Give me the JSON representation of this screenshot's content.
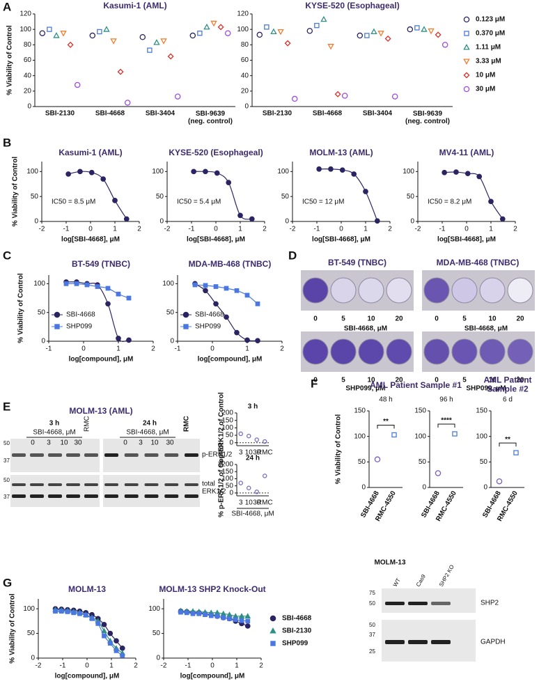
{
  "panel_labels": [
    "A",
    "B",
    "C",
    "D",
    "E",
    "F",
    "G"
  ],
  "panel_d": {
    "titles": [
      "BT-549 (TNBC)",
      "MDA-MB-468 (TNBC)"
    ],
    "doses": [
      "0",
      "5",
      "10",
      "20"
    ],
    "rows": [
      "SBI-4668, μM",
      "SHP099, μM"
    ]
  },
  "panel_e": {
    "title": "MOLM-13 (AML)",
    "times": [
      "3 h",
      "24 h"
    ],
    "treatment": "SBI-4668, μM",
    "doses": [
      "0",
      "3",
      "10",
      "30"
    ],
    "rmc": "RMC",
    "markers": [
      "50",
      "37"
    ],
    "bands": [
      "p-ERK1/2",
      "total\nERK1/2"
    ]
  },
  "panel_g": {
    "title": "MOLM-13",
    "lanes": [
      "WT",
      "Cas9",
      "SHP2 KO"
    ],
    "markers_top": [
      "75",
      "50"
    ],
    "markers_bottom": [
      "50",
      "37",
      "25"
    ],
    "bands": [
      "SHP2",
      "GAPDH"
    ]
  },
  "chart_data": [
    {
      "type": "dotplot",
      "title": "Kasumi-1 (AML)",
      "ylabel": "% Viability of Control",
      "categories": [
        "SBI-2130",
        "SBI-4668",
        "SBI-3404",
        "SBI-9639\n(neg. control)"
      ],
      "ylim": [
        0,
        120
      ],
      "yticks": [
        0,
        20,
        40,
        60,
        80,
        100,
        120
      ],
      "filled": false,
      "series": [
        {
          "color": "#2b2463",
          "marker": "circle",
          "values": [
            95,
            92,
            90,
            92
          ]
        },
        {
          "color": "#4a78e0",
          "marker": "square",
          "values": [
            100,
            97,
            73,
            95
          ]
        },
        {
          "color": "#2f8f84",
          "marker": "triangle",
          "values": [
            92,
            100,
            83,
            103
          ]
        },
        {
          "color": "#ee7d2f",
          "marker": "down",
          "values": [
            95,
            85,
            85,
            108
          ]
        },
        {
          "color": "#d9302a",
          "marker": "diamond",
          "values": [
            80,
            45,
            65,
            103
          ]
        },
        {
          "color": "#a04be0",
          "marker": "circle",
          "values": [
            28,
            5,
            13,
            95
          ]
        }
      ]
    },
    {
      "type": "dotplot",
      "title": "KYSE-520 (Esophageal)",
      "categories": [
        "SBI-2130",
        "SBI-4668",
        "SBI-3404",
        "SBI-9639\n(neg. control)"
      ],
      "ylim": [
        0,
        120
      ],
      "yticks": [
        0,
        20,
        40,
        60,
        80,
        100,
        120
      ],
      "filled": false,
      "legend": "right",
      "series": [
        {
          "name": "0.123 μM",
          "color": "#2b2463",
          "marker": "circle",
          "values": [
            93,
            98,
            92,
            100
          ]
        },
        {
          "name": "0.370 μM",
          "color": "#4a78e0",
          "marker": "square",
          "values": [
            103,
            105,
            92,
            102
          ]
        },
        {
          "name": "1.11 μM",
          "color": "#2f8f84",
          "marker": "triangle",
          "values": [
            97,
            113,
            97,
            100
          ]
        },
        {
          "name": "3.33 μM",
          "color": "#ee7d2f",
          "marker": "down",
          "values": [
            97,
            78,
            95,
            98
          ]
        },
        {
          "name": "10 μM",
          "color": "#d9302a",
          "marker": "diamond",
          "values": [
            82,
            16,
            88,
            93
          ]
        },
        {
          "name": "30 μM",
          "color": "#a04be0",
          "marker": "circle",
          "values": [
            10,
            14,
            13,
            80
          ]
        }
      ]
    },
    {
      "type": "line",
      "title": "Kasumi-1 (AML)",
      "ylabel": "% Viability of Control",
      "xlabel": "log[SBI-4668], μM",
      "annotation": "IC50 = 8.5 μM",
      "x": [
        -0.91,
        -0.43,
        0.05,
        0.52,
        1.0,
        1.48
      ],
      "values": [
        95,
        100,
        98,
        85,
        42,
        5
      ],
      "color": "#2b2463",
      "marker": "circle",
      "filled": true,
      "xlim": [
        -2,
        2
      ],
      "xticks": [
        -2,
        -1,
        0,
        1,
        2
      ],
      "ylim": [
        0,
        120
      ],
      "yticks": [
        0,
        50,
        100
      ]
    },
    {
      "type": "line",
      "title": "KYSE-520 (Esophageal)",
      "xlabel": "log[SBI-4668], μM",
      "annotation": "IC50 = 5.4 μM",
      "x": [
        -0.91,
        -0.43,
        0.05,
        0.52,
        1.0,
        1.48
      ],
      "values": [
        100,
        100,
        97,
        78,
        12,
        5
      ],
      "color": "#2b2463",
      "marker": "circle",
      "filled": true,
      "xlim": [
        -2,
        2
      ],
      "xticks": [
        -2,
        -1,
        0,
        1,
        2
      ],
      "ylim": [
        0,
        120
      ],
      "yticks": [
        0,
        50,
        100
      ]
    },
    {
      "type": "line",
      "title": "MOLM-13 (AML)",
      "xlabel": "log[SBI-4668], μM",
      "annotation": "IC50 = 12 μM",
      "x": [
        -0.91,
        -0.43,
        0.05,
        0.52,
        1.0,
        1.48
      ],
      "values": [
        105,
        105,
        103,
        95,
        60,
        1
      ],
      "color": "#2b2463",
      "marker": "circle",
      "filled": true,
      "xlim": [
        -2,
        2
      ],
      "xticks": [
        -2,
        -1,
        0,
        1,
        2
      ],
      "ylim": [
        0,
        120
      ],
      "yticks": [
        0,
        50,
        100
      ]
    },
    {
      "type": "line",
      "title": "MV4-11 (AML)",
      "xlabel": "log[SBI-4668], μM",
      "annotation": "IC50 = 8.2 μM",
      "x": [
        -0.91,
        -0.43,
        0.05,
        0.52,
        1.0,
        1.48
      ],
      "values": [
        98,
        99,
        96,
        90,
        40,
        5
      ],
      "color": "#2b2463",
      "marker": "circle",
      "filled": true,
      "xlim": [
        -2,
        2
      ],
      "xticks": [
        -2,
        -1,
        0,
        1,
        2
      ],
      "ylim": [
        0,
        120
      ],
      "yticks": [
        0,
        50,
        100
      ]
    },
    {
      "type": "line",
      "title": "BT-549 (TNBC)",
      "ylabel": "% Viability of Control",
      "xlabel": "log[compound], μM",
      "x": [
        -0.5,
        -0.2,
        0.1,
        0.4,
        0.7,
        1.0,
        1.3
      ],
      "xlim": [
        -1,
        2
      ],
      "xticks": [
        -1,
        0,
        1,
        2
      ],
      "ylim": [
        0,
        115
      ],
      "yticks": [
        0,
        50,
        100
      ],
      "filled": true,
      "legend": "lower left",
      "series": [
        {
          "name": "SBI-4668",
          "color": "#2b2463",
          "marker": "circle",
          "values": [
            103,
            103,
            100,
            98,
            65,
            5,
            2
          ]
        },
        {
          "name": "SHP099",
          "color": "#4a78e0",
          "marker": "square",
          "values": [
            100,
            100,
            98,
            95,
            92,
            82,
            75
          ]
        }
      ]
    },
    {
      "type": "line",
      "title": "MDA-MB-468 (TNBC)",
      "xlabel": "log[compound], μM",
      "x": [
        -0.5,
        -0.2,
        0.1,
        0.4,
        0.7,
        1.0,
        1.3
      ],
      "xlim": [
        -1,
        2
      ],
      "xticks": [
        -1,
        0,
        1,
        2
      ],
      "ylim": [
        0,
        115
      ],
      "yticks": [
        0,
        50,
        100
      ],
      "filled": true,
      "legend": "lower left",
      "series": [
        {
          "name": "SBI-4668",
          "color": "#2b2463",
          "marker": "circle",
          "values": [
            100,
            88,
            65,
            42,
            15,
            2,
            1
          ]
        },
        {
          "name": "SHP099",
          "color": "#4a78e0",
          "marker": "square",
          "values": [
            98,
            97,
            95,
            92,
            88,
            80,
            65
          ]
        }
      ]
    },
    {
      "type": "dotplot",
      "title": "3 h",
      "ylabel": "% p-ERK1/2 of Control",
      "categories": [
        "3",
        "10",
        "30",
        "RMC"
      ],
      "values": [
        60,
        45,
        20,
        8
      ],
      "color": "#7a6cc0",
      "marker": "circle",
      "filled": false,
      "ylim": [
        -20,
        200
      ],
      "yticks": [
        0,
        50,
        100,
        150,
        200
      ],
      "zero_line": true
    },
    {
      "type": "dotplot",
      "title": "24 h",
      "ylabel": "% p-ERK1/2 of Control",
      "categories": [
        "3",
        "10",
        "30",
        "RMC"
      ],
      "values": [
        70,
        35,
        8,
        120
      ],
      "color": "#7a6cc0",
      "marker": "circle",
      "filled": false,
      "ylim": [
        -20,
        200
      ],
      "yticks": [
        0,
        50,
        100,
        150,
        200
      ],
      "zero_line": true
    },
    {
      "type": "dotplot",
      "title": "AML Patient Sample #1",
      "subtitle": "48 h",
      "ylabel": "% Viability of Control",
      "categories": [
        "SBI-4668",
        "RMC-4550"
      ],
      "values": [
        55,
        103
      ],
      "colors": [
        "#7a5fc0",
        "#4a78e0"
      ],
      "markers": [
        "circle",
        "square"
      ],
      "filled": false,
      "ylim": [
        0,
        150
      ],
      "yticks": [
        0,
        50,
        100,
        150
      ],
      "annotation": "**"
    },
    {
      "type": "dotplot",
      "subtitle": "96 h",
      "categories": [
        "SBI-4668",
        "RMC-4550"
      ],
      "values": [
        28,
        105
      ],
      "colors": [
        "#7a5fc0",
        "#4a78e0"
      ],
      "markers": [
        "circle",
        "square"
      ],
      "filled": false,
      "ylim": [
        0,
        150
      ],
      "yticks": [
        0,
        50,
        100,
        150
      ],
      "annotation": "****"
    },
    {
      "type": "dotplot",
      "title": "AML Patient\nSample #2",
      "subtitle": "6 d",
      "categories": [
        "SBI-4668",
        "RMC-4550"
      ],
      "values": [
        12,
        68
      ],
      "colors": [
        "#7a5fc0",
        "#4a78e0"
      ],
      "markers": [
        "circle",
        "square"
      ],
      "filled": false,
      "ylim": [
        0,
        150
      ],
      "yticks": [
        0,
        50,
        100,
        150
      ],
      "annotation": "**"
    },
    {
      "type": "line",
      "title": "MOLM-13",
      "ylabel": "% Viability of Control",
      "xlabel": "log[compound], μM",
      "x": [
        -1.3,
        -1.05,
        -0.8,
        -0.55,
        -0.3,
        -0.05,
        0.2,
        0.45,
        0.7,
        0.95,
        1.2,
        1.45
      ],
      "xlim": [
        -2,
        2
      ],
      "xticks": [
        -2,
        -1,
        0,
        1,
        2
      ],
      "ylim": [
        0,
        120
      ],
      "yticks": [
        0,
        50,
        100
      ],
      "filled": true,
      "series": [
        {
          "color": "#2b2463",
          "marker": "circle",
          "values": [
            100,
            99,
            98,
            97,
            95,
            92,
            88,
            80,
            68,
            50,
            35,
            20
          ]
        },
        {
          "color": "#2f8f84",
          "marker": "triangle",
          "values": [
            98,
            97,
            96,
            94,
            92,
            88,
            82,
            75,
            55,
            35,
            20,
            10
          ]
        },
        {
          "color": "#4a78e0",
          "marker": "square",
          "values": [
            95,
            95,
            94,
            92,
            90,
            87,
            80,
            70,
            45,
            30,
            15,
            5
          ]
        }
      ]
    },
    {
      "type": "line",
      "title": "MOLM-13 SHP2 Knock-Out",
      "xlabel": "log[compound], μM",
      "x": [
        -1.3,
        -1.05,
        -0.8,
        -0.55,
        -0.3,
        -0.05,
        0.2,
        0.45,
        0.7,
        0.95,
        1.2,
        1.45
      ],
      "xlim": [
        -2,
        2
      ],
      "xticks": [
        -2,
        -1,
        0,
        1,
        2
      ],
      "ylim": [
        0,
        120
      ],
      "yticks": [
        0,
        50,
        100
      ],
      "filled": true,
      "legend": "right",
      "series": [
        {
          "name": "SBI-4668",
          "color": "#2b2463",
          "marker": "circle",
          "values": [
            95,
            94,
            92,
            92,
            90,
            88,
            85,
            82,
            80,
            75,
            70,
            65
          ]
        },
        {
          "name": "SBI-2130",
          "color": "#2f8f84",
          "marker": "triangle",
          "values": [
            96,
            95,
            95,
            94,
            93,
            92,
            92,
            90,
            88,
            85,
            85,
            85
          ]
        },
        {
          "name": "SHP099",
          "color": "#4a78e0",
          "marker": "square",
          "values": [
            93,
            92,
            90,
            90,
            88,
            86,
            85,
            82,
            80,
            78,
            76,
            75
          ]
        }
      ]
    }
  ]
}
